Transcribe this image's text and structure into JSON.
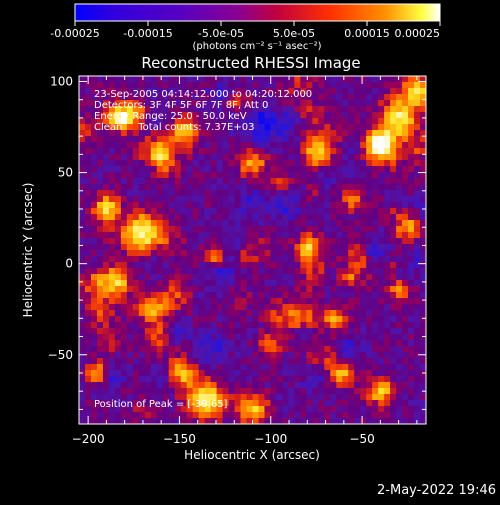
{
  "colorbar": {
    "tick_labels": [
      "-0.00025",
      "-0.00015",
      "-5.0e-05",
      "5.0e-05",
      "0.00015",
      "0.00025"
    ],
    "unit_label": "(photons cm⁻² s⁻¹ asec⁻²)",
    "min": -0.00025,
    "max": 0.00025
  },
  "chart_data": {
    "type": "heatmap",
    "title": "Reconstructed RHESSI Image",
    "xlabel": "Heliocentric X (arcsec)",
    "ylabel": "Heliocentric Y (arcsec)",
    "xlim": [
      -205,
      -15
    ],
    "ylim": [
      -88,
      103
    ],
    "x_ticks": [
      -200,
      -150,
      -100,
      -50
    ],
    "y_ticks": [
      100,
      50,
      0,
      -50
    ],
    "x_tick_labels": [
      "−200",
      "−150",
      "−100",
      "−50"
    ],
    "y_tick_labels": [
      "100",
      "50",
      "0",
      "−50"
    ],
    "annotations": [
      "23-Sep-2005 04:14:12.000 to 04:20:12.000",
      "Detectors: 3F 4F 5F 6F 7F 8F, Att 0",
      "Energy Range: 25.0 - 50.0 keV",
      "Clean     Total counts: 7.37E+03"
    ],
    "peak_label": "Position of Peak = [-39,65]",
    "peak_position": [
      -39,
      65
    ],
    "total_counts": 7370,
    "energy_range_kev": [
      25.0,
      50.0
    ],
    "colormap": [
      "#0000ff",
      "#5a00c8",
      "#7a00a0",
      "#c80040",
      "#ff4000",
      "#ff9600",
      "#ffff00",
      "#ffffff"
    ]
  },
  "footer": {
    "timestamp": "2-May-2022 19:46"
  }
}
